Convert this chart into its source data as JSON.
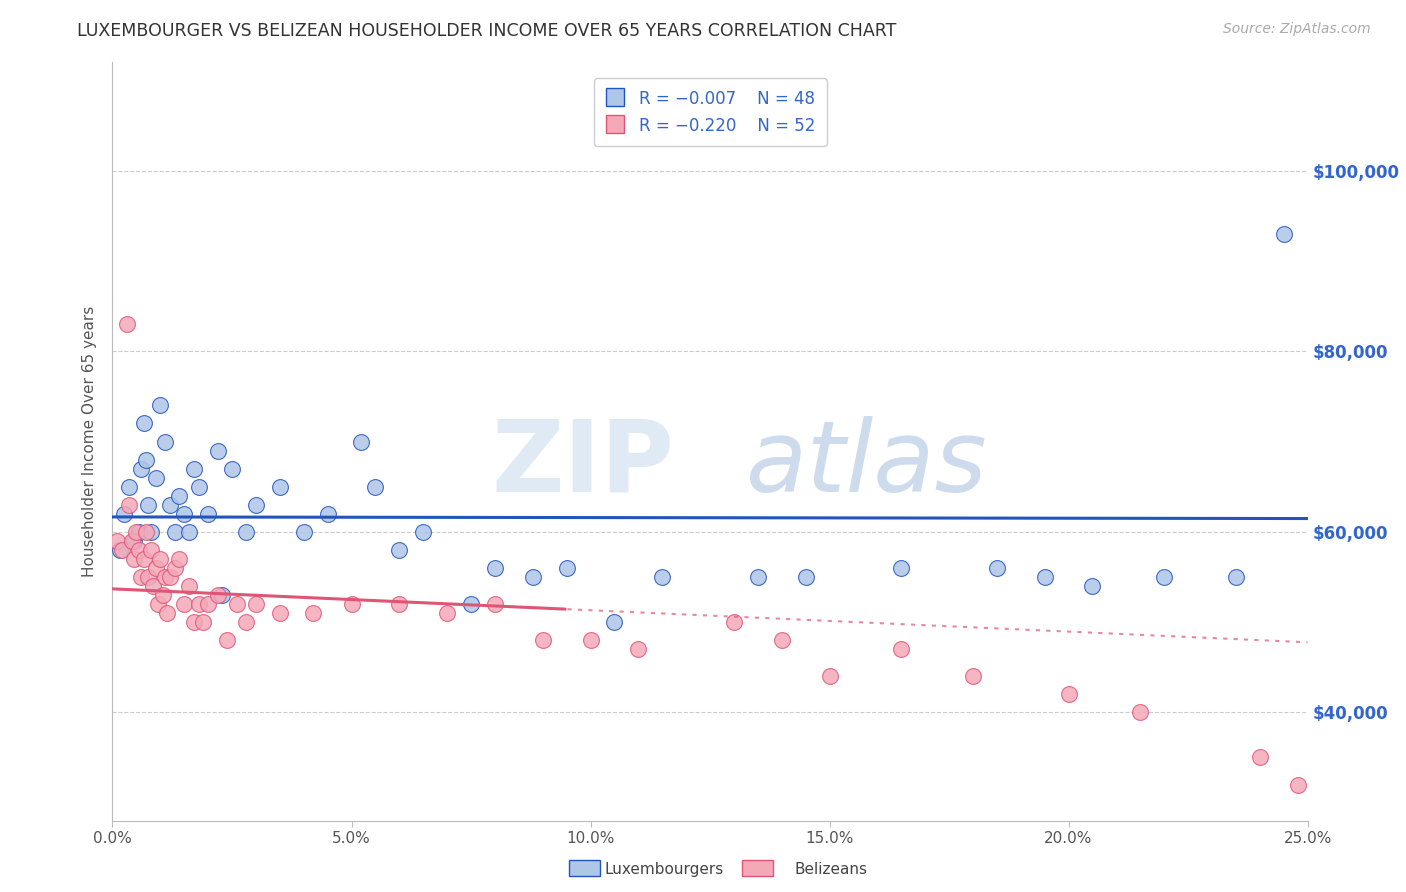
{
  "title": "LUXEMBOURGER VS BELIZEAN HOUSEHOLDER INCOME OVER 65 YEARS CORRELATION CHART",
  "source": "Source: ZipAtlas.com",
  "ylabel": "Householder Income Over 65 years",
  "x_tick_labels": [
    "0.0%",
    "5.0%",
    "10.0%",
    "15.0%",
    "20.0%",
    "25.0%"
  ],
  "x_tick_values": [
    0.0,
    5.0,
    10.0,
    15.0,
    20.0,
    25.0
  ],
  "y_tick_labels": [
    "$40,000",
    "$60,000",
    "$80,000",
    "$100,000"
  ],
  "y_tick_values": [
    40000,
    60000,
    80000,
    100000
  ],
  "lux_color": "#aec6e8",
  "bel_color": "#f4a8b8",
  "lux_line_color": "#2255bb",
  "bel_line_color": "#e05575",
  "watermark_zip": "ZIP",
  "watermark_atlas": "atlas",
  "xlim": [
    0,
    25
  ],
  "ylim": [
    28000,
    112000
  ],
  "luxembourgers_x": [
    0.15,
    0.25,
    0.35,
    0.45,
    0.55,
    0.6,
    0.65,
    0.7,
    0.75,
    0.8,
    0.9,
    1.0,
    1.1,
    1.2,
    1.3,
    1.4,
    1.5,
    1.6,
    1.7,
    1.8,
    2.0,
    2.2,
    2.5,
    2.8,
    3.0,
    3.5,
    4.0,
    4.5,
    5.5,
    6.0,
    6.5,
    7.5,
    8.0,
    9.5,
    10.5,
    11.5,
    13.5,
    14.5,
    16.5,
    18.5,
    19.5,
    20.5,
    22.0,
    23.5,
    24.5,
    5.2,
    8.8,
    2.3
  ],
  "luxembourgers_y": [
    58000,
    62000,
    65000,
    59000,
    60000,
    67000,
    72000,
    68000,
    63000,
    60000,
    66000,
    74000,
    70000,
    63000,
    60000,
    64000,
    62000,
    60000,
    67000,
    65000,
    62000,
    69000,
    67000,
    60000,
    63000,
    65000,
    60000,
    62000,
    65000,
    58000,
    60000,
    52000,
    56000,
    56000,
    50000,
    55000,
    55000,
    55000,
    56000,
    56000,
    55000,
    54000,
    55000,
    55000,
    93000,
    70000,
    55000,
    53000
  ],
  "belizeans_x": [
    0.1,
    0.2,
    0.3,
    0.35,
    0.4,
    0.45,
    0.5,
    0.55,
    0.6,
    0.65,
    0.7,
    0.75,
    0.8,
    0.85,
    0.9,
    0.95,
    1.0,
    1.05,
    1.1,
    1.15,
    1.2,
    1.3,
    1.4,
    1.5,
    1.6,
    1.7,
    1.8,
    1.9,
    2.0,
    2.2,
    2.4,
    2.6,
    2.8,
    3.0,
    3.5,
    4.2,
    5.0,
    6.0,
    7.0,
    8.0,
    9.0,
    10.0,
    11.0,
    13.0,
    14.0,
    15.0,
    16.5,
    18.0,
    20.0,
    21.5,
    24.0,
    24.8
  ],
  "belizeans_y": [
    59000,
    58000,
    83000,
    63000,
    59000,
    57000,
    60000,
    58000,
    55000,
    57000,
    60000,
    55000,
    58000,
    54000,
    56000,
    52000,
    57000,
    53000,
    55000,
    51000,
    55000,
    56000,
    57000,
    52000,
    54000,
    50000,
    52000,
    50000,
    52000,
    53000,
    48000,
    52000,
    50000,
    52000,
    51000,
    51000,
    52000,
    52000,
    51000,
    52000,
    48000,
    48000,
    47000,
    50000,
    48000,
    44000,
    47000,
    44000,
    42000,
    40000,
    35000,
    32000
  ],
  "bel_trend_solid_end": 9.5,
  "lux_trend_r": -0.007,
  "bel_trend_r": -0.22
}
